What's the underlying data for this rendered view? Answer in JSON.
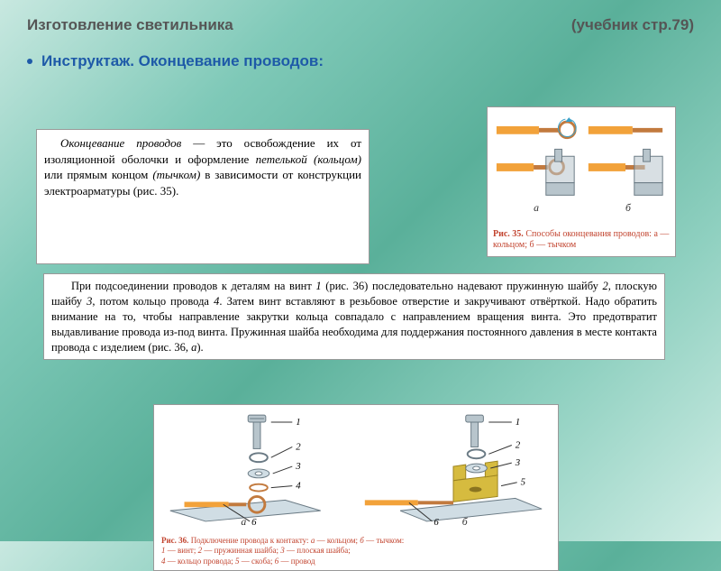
{
  "header": {
    "title_left": "Изготовление светильника",
    "title_right": "(учебник  стр.79)"
  },
  "bullet": {
    "label": "Инструктаж.  Оконцевание проводов:"
  },
  "panel1": {
    "text": "Оконцевание проводов — это осво­бождение их от изоляционной оболочки и оформление петелькой (кольцом) или прямым концом (тычком) в зависи­мости от конструкции электроарматуры (рис. 35).",
    "em1": "Оконцевание проводов",
    "em2": "петелькой",
    "em3": "(кольцом)",
    "em4": "(тычком)"
  },
  "fig35": {
    "caption_label": "Рис. 35.",
    "caption_text": "Способы оконцевания проводов: а — кольцом; б — тычком",
    "a": "а",
    "b": "б",
    "colors": {
      "insulation": "#f2a23a",
      "copper": "#c27a3e",
      "terminal": "#b8c5cc",
      "terminal_edge": "#6a7a84",
      "arrow": "#3aa0c8"
    }
  },
  "panel3": {
    "text": "При подсоединении проводов к деталям на винт 1 (рис. 36) последова­тельно надевают пружинную шайбу 2, плоскую шайбу 3, потом кольцо про­вода 4. Затем винт вставляют в резьбовое отверстие и закручивают отвёрт­кой. Надо обратить внимание на то, чтобы направление закрутки кольца со­впадало с направлением вращения винта. Это предотвратит выдавливание провода из-под винта. Пружинная шайба необходима для поддержания по­стоянного давления в месте контакта провода с изделием (рис. 36, а).",
    "i1": "1",
    "i2": "2",
    "i3": "3",
    "i4": "4",
    "ia": "а"
  },
  "fig36": {
    "caption_label": "Рис. 36.",
    "caption_text": "Подключение провода к контакту: а — кольцом; б — тычком:\n1 — винт; 2 — пружинная шайба; 3 — плоская шайба;\n4 — кольцо провода; 5 — скоба; 6 — провод",
    "a": "а",
    "b": "б",
    "labels": {
      "n1": "1",
      "n2": "2",
      "n3": "3",
      "n4": "4",
      "n5": "5",
      "n6": "6"
    },
    "colors": {
      "screw": "#b8c5cc",
      "screw_edge": "#6a7a84",
      "bracket": "#d6bb3f",
      "bracket_edge": "#9c8420",
      "plate": "#d0dde4",
      "insulation": "#f2a23a",
      "copper": "#c27a3e",
      "wire_blue": "#4a8cc2"
    }
  }
}
